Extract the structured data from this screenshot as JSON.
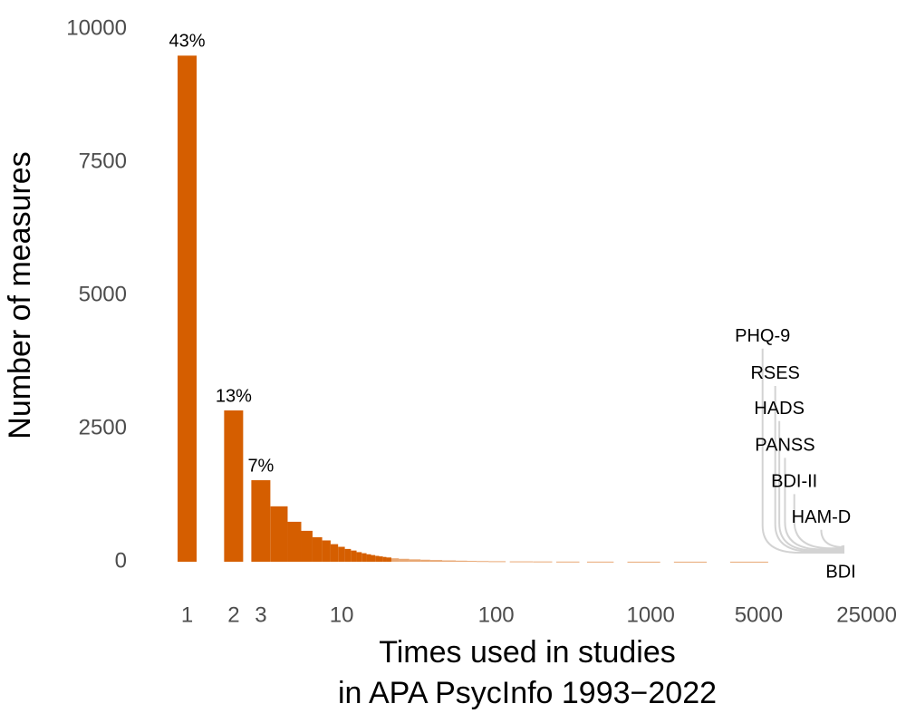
{
  "chart_data": {
    "type": "bar",
    "ylabel": "Number of measures",
    "xlabel": [
      "Times used in studies",
      "in APA PsycInfo 1993−2022"
    ],
    "log_x": true,
    "color": "#d55e00",
    "x": [
      1,
      2,
      3,
      4,
      5,
      6,
      7,
      8,
      9,
      10,
      11,
      12,
      13,
      14,
      15,
      16,
      17,
      18,
      19,
      20,
      22,
      25,
      30,
      35,
      40,
      50,
      60,
      70,
      80,
      100,
      150,
      200,
      300,
      500,
      1000,
      2000,
      5000
    ],
    "values": [
      9500,
      2840,
      1530,
      1040,
      750,
      580,
      460,
      400,
      330,
      280,
      240,
      210,
      180,
      160,
      140,
      125,
      110,
      100,
      90,
      80,
      65,
      55,
      45,
      38,
      32,
      25,
      20,
      16,
      13,
      10,
      7,
      5,
      3,
      2,
      1,
      1,
      1
    ],
    "annotations": [
      {
        "x": 1,
        "y": 9500,
        "text": "43%"
      },
      {
        "x": 2,
        "y": 2840,
        "text": "13%"
      },
      {
        "x": 3,
        "y": 1530,
        "text": "7%"
      }
    ],
    "measures_color": "#d3d3d3",
    "measures": [
      {
        "name": "PHQ-9",
        "x": 5300,
        "y": 4000
      },
      {
        "name": "RSES",
        "x": 6400,
        "y": 3300
      },
      {
        "name": "HADS",
        "x": 6800,
        "y": 2640
      },
      {
        "name": "PANSS",
        "x": 7400,
        "y": 1950
      },
      {
        "name": "BDI-II",
        "x": 8500,
        "y": 1270
      },
      {
        "name": "HAM-D",
        "x": 12700,
        "y": 600
      },
      {
        "name": "BDI",
        "x": 17000,
        "y": 250
      }
    ],
    "xlim": [
      0.8,
      28000
    ],
    "xticks": [
      1,
      2,
      3,
      10,
      100,
      1000,
      5000,
      25000
    ],
    "ylim": [
      0,
      10000
    ],
    "yticks": [
      0,
      2500,
      5000,
      7500,
      10000
    ],
    "grid": false
  }
}
